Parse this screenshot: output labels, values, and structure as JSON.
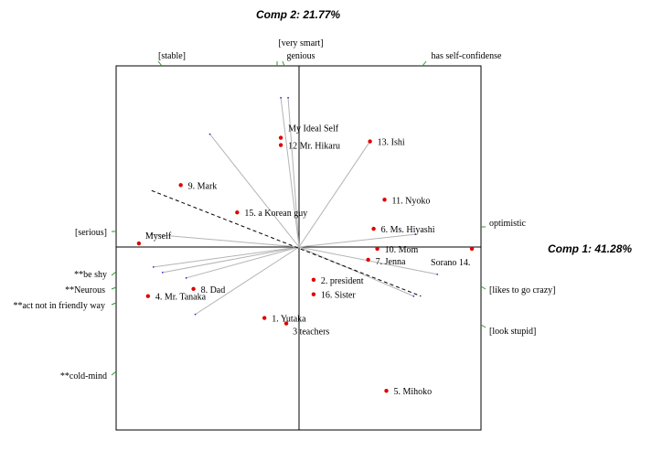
{
  "chart_data": {
    "type": "scatter",
    "title": "",
    "xlabel": "Comp 1: 41.28%",
    "ylabel": "Comp 2: 21.77%",
    "xlim": [
      -1,
      1
    ],
    "ylim": [
      -1,
      1
    ],
    "grid": false,
    "point_color": "#e00000",
    "vector_color": "#b4b4b4",
    "vector_tip_color": "#3030d0",
    "tick_color": "#2a9a2a",
    "dashed_axis": {
      "x1": -0.81,
      "y1": 0.31,
      "x2": 0.67,
      "y2": -0.27
    },
    "elements": [
      {
        "name": "My Ideal Self",
        "x": -0.1,
        "y": 0.6
      },
      {
        "name": "12  Mr. Hikaru",
        "x": -0.1,
        "y": 0.56
      },
      {
        "name": "13.  Ishi",
        "x": 0.39,
        "y": 0.58
      },
      {
        "name": "9.  Mark",
        "x": -0.65,
        "y": 0.34
      },
      {
        "name": "11.  Nyoko",
        "x": 0.47,
        "y": 0.26
      },
      {
        "name": "15.  a Korean guy",
        "x": -0.34,
        "y": 0.19
      },
      {
        "name": "6.  Ms. Hiyashi",
        "x": 0.41,
        "y": 0.1
      },
      {
        "name": "Myself",
        "x": -0.88,
        "y": 0.02
      },
      {
        "name": "10.  Mom",
        "x": 0.43,
        "y": -0.01
      },
      {
        "name": "7.  Jenna",
        "x": 0.38,
        "y": -0.07
      },
      {
        "name": "Sorano  14.",
        "x": 0.95,
        "y": -0.01
      },
      {
        "name": "8.  Dad",
        "x": -0.58,
        "y": -0.23
      },
      {
        "name": "2.  president",
        "x": 0.08,
        "y": -0.18
      },
      {
        "name": "16.  Sister",
        "x": 0.08,
        "y": -0.26
      },
      {
        "name": "4.  Mr. Tanaka",
        "x": -0.83,
        "y": -0.27
      },
      {
        "name": "1.  Yutaka",
        "x": -0.19,
        "y": -0.39
      },
      {
        "name": "3  teachers",
        "x": -0.07,
        "y": -0.42
      },
      {
        "name": "5.  Mihoko",
        "x": 0.48,
        "y": -0.79
      }
    ],
    "constructs": [
      {
        "label": "[stable]",
        "vector": [
          -0.49,
          0.62
        ],
        "tick": "top-left"
      },
      {
        "label": "[very smart]",
        "vector": [
          -0.1,
          0.82
        ],
        "tick": "top-center"
      },
      {
        "label": "genious",
        "vector": [
          -0.06,
          0.82
        ],
        "tick": "top-center"
      },
      {
        "label": "has self-confidense",
        "vector": [
          0.39,
          0.58
        ],
        "tick": "top-right"
      },
      {
        "label": "[serious]",
        "vector": [
          -0.81,
          0.07
        ],
        "tick": "left"
      },
      {
        "label": "optimistic",
        "vector": [
          0.64,
          0.07
        ],
        "tick": "right"
      },
      {
        "label": "[likes to go crazy]",
        "vector": [
          0.76,
          -0.15
        ],
        "tick": "right"
      },
      {
        "label": "[look stupid]",
        "vector": [
          0.63,
          -0.27
        ],
        "tick": "right"
      },
      {
        "label": "**be shy",
        "vector": [
          -0.8,
          -0.11
        ],
        "tick": "left"
      },
      {
        "label": "**Neurous",
        "vector": [
          -0.75,
          -0.14
        ],
        "tick": "left"
      },
      {
        "label": "**act not in friendly way",
        "vector": [
          -0.62,
          -0.17
        ],
        "tick": "left"
      },
      {
        "label": "**cold-mind",
        "vector": [
          -0.57,
          -0.37
        ],
        "tick": "left"
      }
    ]
  }
}
